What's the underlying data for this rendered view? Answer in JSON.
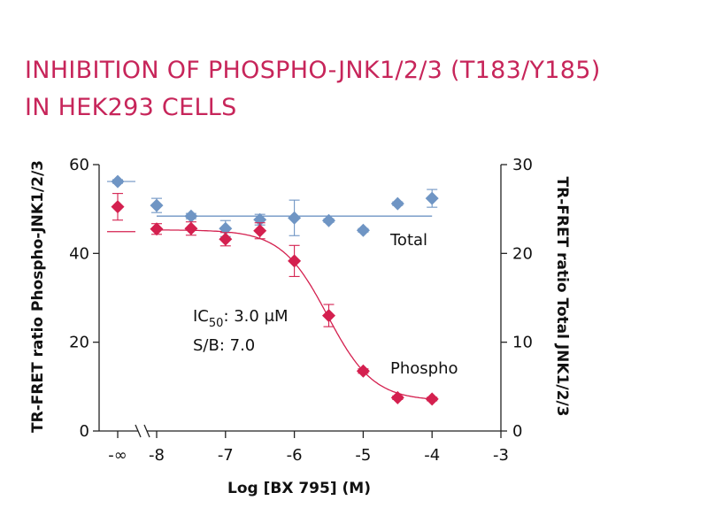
{
  "colors": {
    "title": "#c7255a",
    "phospho": "#d4204f",
    "total": "#6f95c4",
    "axis": "#222222"
  },
  "chart_data": {
    "type": "scatter",
    "title_line1": "INHIBITION OF PHOSPHO-JNK1/2/3 (T183/Y185)",
    "title_line2": "IN HEK293 CELLS",
    "xlabel": "Log [BX 795] (M)",
    "ylabel_left": "TR-FRET ratio Phospho-JNK1/2/3",
    "ylabel_right": "TR-FRET ratio Total JNK1/2/3",
    "xlim": [
      -8.5,
      -3
    ],
    "ylim_left": [
      0,
      60
    ],
    "ylim_right": [
      0,
      30
    ],
    "x_ticks": [
      -8,
      -7,
      -6,
      -5,
      -4,
      -3
    ],
    "x_tick_labels": [
      "-8",
      "-7",
      "-6",
      "-5",
      "-4",
      "-3"
    ],
    "neg_inf_label": "-∞",
    "y_left_ticks": [
      0,
      20,
      40,
      60
    ],
    "y_right_ticks": [
      0,
      10,
      20,
      30
    ],
    "grid": false,
    "annotation_ic50_prefix": "IC",
    "annotation_ic50_sub": "50",
    "annotation_ic50_value": ": 3.0 μM",
    "annotation_sb": "S/B: 7.0",
    "series": [
      {
        "name": "Phospho",
        "axis": "left",
        "marker": "diamond",
        "neg_inf_point": {
          "y": 50.5,
          "err": 3.0
        },
        "points": [
          {
            "x": -8.0,
            "y": 45.5,
            "err": 1.2
          },
          {
            "x": -7.5,
            "y": 45.6,
            "err": 1.5
          },
          {
            "x": -7.0,
            "y": 43.2,
            "err": 1.5
          },
          {
            "x": -6.5,
            "y": 45.1,
            "err": 1.8
          },
          {
            "x": -6.0,
            "y": 38.3,
            "err": 3.5
          },
          {
            "x": -5.5,
            "y": 26.0,
            "err": 2.5
          },
          {
            "x": -5.0,
            "y": 13.5,
            "err": 0.5
          },
          {
            "x": -4.5,
            "y": 7.5,
            "err": 0.4
          },
          {
            "x": -4.0,
            "y": 7.2,
            "err": 0.4
          }
        ],
        "fit": {
          "top": 45.3,
          "bottom": 6.8,
          "log_ic50": -5.52,
          "hill": 1.3
        }
      },
      {
        "name": "Total",
        "axis": "right",
        "marker": "diamond",
        "neg_inf_point": {
          "y": 28.1,
          "err": 0.2
        },
        "points": [
          {
            "x": -8.0,
            "y": 25.4,
            "err": 0.8
          },
          {
            "x": -7.5,
            "y": 24.2,
            "err": 0.3
          },
          {
            "x": -7.0,
            "y": 22.8,
            "err": 0.9
          },
          {
            "x": -6.5,
            "y": 23.8,
            "err": 0.6
          },
          {
            "x": -6.0,
            "y": 24.0,
            "err": 2.0
          },
          {
            "x": -5.5,
            "y": 23.7,
            "err": 0.2
          },
          {
            "x": -5.0,
            "y": 22.6,
            "err": 0.2
          },
          {
            "x": -4.5,
            "y": 25.6,
            "err": 0.2
          },
          {
            "x": -4.0,
            "y": 26.2,
            "err": 1.0
          }
        ],
        "fit": {
          "line_y": 24.2
        }
      }
    ]
  }
}
